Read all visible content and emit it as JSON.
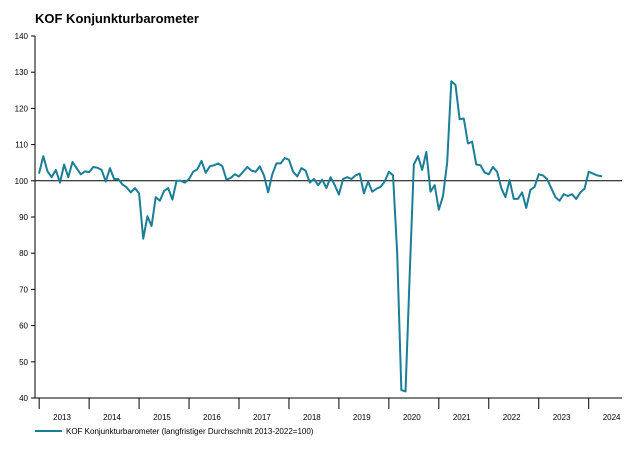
{
  "chart_data": {
    "type": "line",
    "title": "KOF Konjunkturbarometer",
    "xlabel": "",
    "ylabel": "",
    "ylim": [
      40,
      140
    ],
    "yticks": [
      40,
      50,
      60,
      70,
      80,
      90,
      100,
      110,
      120,
      130,
      140
    ],
    "xlim": [
      "2012-12",
      "2024-09"
    ],
    "year_labels": [
      "2013",
      "2014",
      "2015",
      "2016",
      "2017",
      "2018",
      "2019",
      "2020",
      "2021",
      "2022",
      "2023",
      "2024"
    ],
    "reference_line": 100,
    "grid": false,
    "legend_position": "bottom-left",
    "colors": {
      "series": "#1a7e96",
      "axis": "#000000",
      "reference": "#000000"
    },
    "series": [
      {
        "name": "KOF Konjunkturbarometer (langfristiger Durchschnitt 2013-2022=100)",
        "x": [
          "2013-01",
          "2013-02",
          "2013-03",
          "2013-04",
          "2013-05",
          "2013-06",
          "2013-07",
          "2013-08",
          "2013-09",
          "2013-10",
          "2013-11",
          "2013-12",
          "2014-01",
          "2014-02",
          "2014-03",
          "2014-04",
          "2014-05",
          "2014-06",
          "2014-07",
          "2014-08",
          "2014-09",
          "2014-10",
          "2014-11",
          "2014-12",
          "2015-01",
          "2015-02",
          "2015-03",
          "2015-04",
          "2015-05",
          "2015-06",
          "2015-07",
          "2015-08",
          "2015-09",
          "2015-10",
          "2015-11",
          "2015-12",
          "2016-01",
          "2016-02",
          "2016-03",
          "2016-04",
          "2016-05",
          "2016-06",
          "2016-07",
          "2016-08",
          "2016-09",
          "2016-10",
          "2016-11",
          "2016-12",
          "2017-01",
          "2017-02",
          "2017-03",
          "2017-04",
          "2017-05",
          "2017-06",
          "2017-07",
          "2017-08",
          "2017-09",
          "2017-10",
          "2017-11",
          "2017-12",
          "2018-01",
          "2018-02",
          "2018-03",
          "2018-04",
          "2018-05",
          "2018-06",
          "2018-07",
          "2018-08",
          "2018-09",
          "2018-10",
          "2018-11",
          "2018-12",
          "2019-01",
          "2019-02",
          "2019-03",
          "2019-04",
          "2019-05",
          "2019-06",
          "2019-07",
          "2019-08",
          "2019-09",
          "2019-10",
          "2019-11",
          "2019-12",
          "2020-01",
          "2020-02",
          "2020-03",
          "2020-04",
          "2020-05",
          "2020-06",
          "2020-07",
          "2020-08",
          "2020-09",
          "2020-10",
          "2020-11",
          "2020-12",
          "2021-01",
          "2021-02",
          "2021-03",
          "2021-04",
          "2021-05",
          "2021-06",
          "2021-07",
          "2021-08",
          "2021-09",
          "2021-10",
          "2021-11",
          "2021-12",
          "2022-01",
          "2022-02",
          "2022-03",
          "2022-04",
          "2022-05",
          "2022-06",
          "2022-07",
          "2022-08",
          "2022-09",
          "2022-10",
          "2022-11",
          "2022-12",
          "2023-01",
          "2023-02",
          "2023-03",
          "2023-04",
          "2023-05",
          "2023-06",
          "2023-07",
          "2023-08",
          "2023-09",
          "2023-10",
          "2023-11",
          "2023-12",
          "2024-01",
          "2024-02",
          "2024-03",
          "2024-04"
        ],
        "values": [
          102.2,
          106.8,
          102.6,
          101.0,
          103.0,
          99.5,
          104.5,
          101.0,
          105.2,
          103.5,
          101.8,
          102.6,
          102.4,
          103.8,
          103.6,
          103.0,
          99.8,
          103.5,
          100.5,
          100.5,
          99.0,
          98.2,
          96.8,
          98.0,
          96.5,
          84.0,
          90.2,
          87.5,
          95.5,
          94.5,
          97.2,
          98.0,
          94.8,
          100.0,
          100.0,
          99.5,
          100.5,
          102.5,
          103.2,
          105.5,
          102.2,
          104.0,
          104.3,
          104.8,
          104.0,
          100.3,
          100.8,
          101.8,
          101.2,
          102.5,
          103.8,
          102.8,
          102.5,
          104.0,
          101.5,
          96.8,
          101.8,
          104.8,
          104.8,
          106.3,
          105.8,
          102.5,
          101.2,
          103.5,
          102.8,
          99.5,
          100.5,
          98.8,
          100.3,
          98.0,
          101.0,
          98.8,
          96.2,
          100.5,
          101.0,
          100.5,
          101.5,
          102.0,
          96.5,
          99.8,
          97.0,
          97.8,
          98.3,
          99.8,
          102.5,
          101.5,
          80.0,
          42.2,
          41.8,
          74.0,
          104.5,
          106.8,
          103.0,
          108.0,
          97.0,
          98.8,
          92.0,
          95.8,
          105.0,
          127.5,
          126.5,
          117.0,
          117.2,
          110.3,
          110.8,
          104.5,
          104.3,
          102.3,
          101.8,
          103.8,
          102.5,
          98.0,
          95.5,
          100.2,
          95.0,
          95.0,
          96.8,
          92.5,
          97.5,
          98.3,
          101.8,
          101.5,
          100.5,
          98.0,
          95.5,
          94.5,
          96.3,
          95.8,
          96.3,
          95.0,
          96.8,
          97.8,
          102.5,
          102.0,
          101.5,
          101.3
        ]
      }
    ]
  }
}
